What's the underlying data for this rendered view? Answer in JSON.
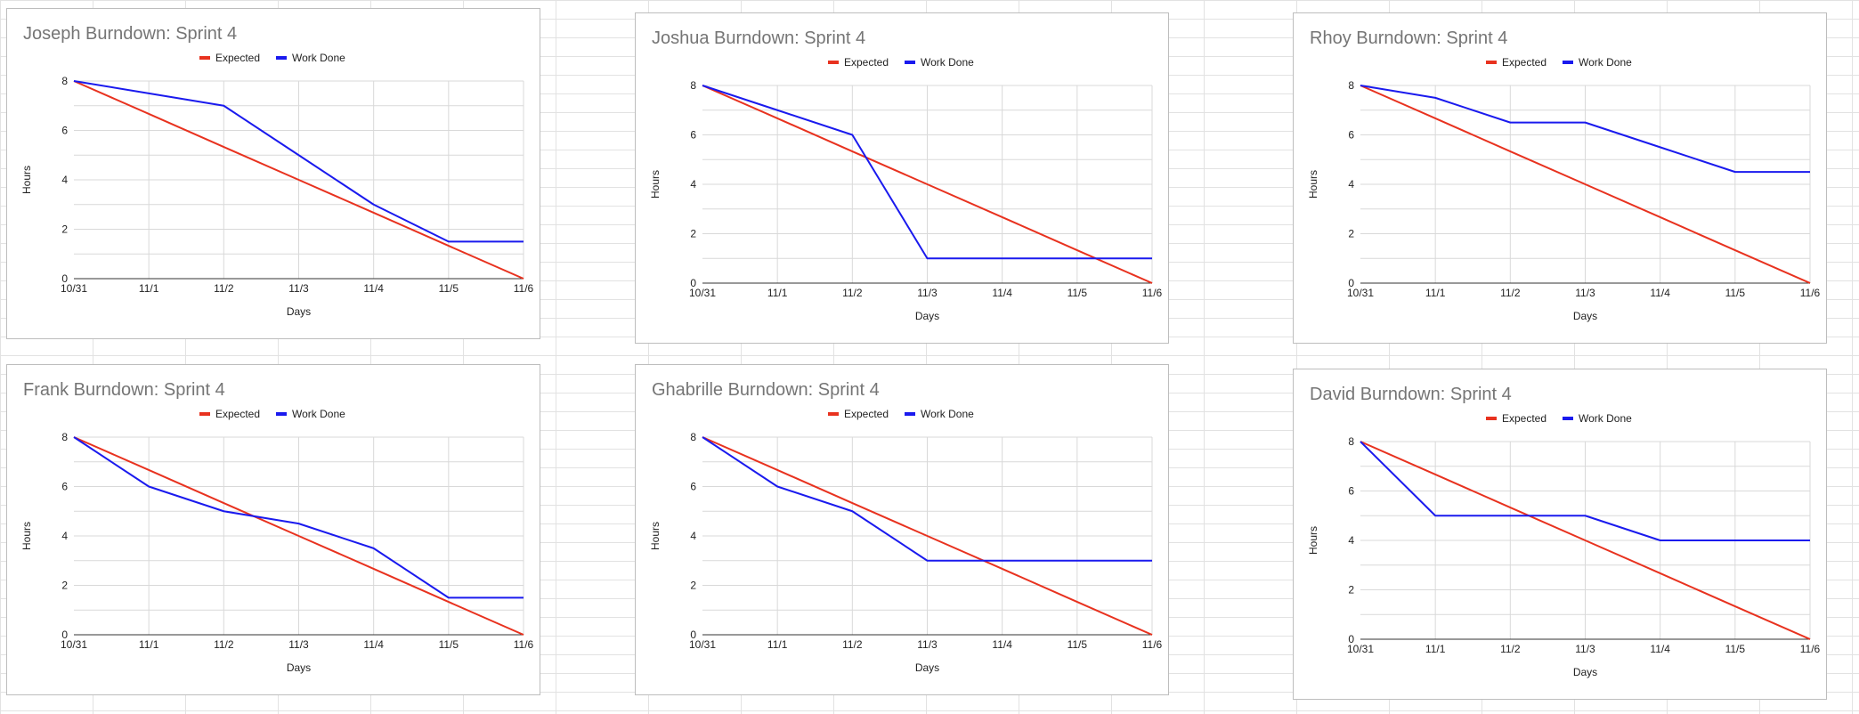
{
  "legend": {
    "expected": "Expected",
    "work_done": "Work Done"
  },
  "colors": {
    "expected": "#e8321f",
    "work_done": "#1a1aee"
  },
  "chart_data": [
    {
      "type": "line",
      "title": "Joseph Burndown: Sprint 4",
      "xlabel": "Days",
      "ylabel": "Hours",
      "categories": [
        "10/31",
        "11/1",
        "11/2",
        "11/3",
        "11/4",
        "11/5",
        "11/6"
      ],
      "ylim": [
        0,
        8
      ],
      "yticks": [
        0,
        2,
        4,
        6,
        8
      ],
      "series": [
        {
          "name": "Expected",
          "values": [
            8,
            6.67,
            5.33,
            4,
            2.67,
            1.33,
            0
          ]
        },
        {
          "name": "Work Done",
          "values": [
            8,
            7.5,
            7,
            5,
            3,
            1.5,
            1.5
          ]
        }
      ]
    },
    {
      "type": "line",
      "title": "Joshua Burndown: Sprint 4",
      "xlabel": "Days",
      "ylabel": "Hours",
      "categories": [
        "10/31",
        "11/1",
        "11/2",
        "11/3",
        "11/4",
        "11/5",
        "11/6"
      ],
      "ylim": [
        0,
        8
      ],
      "yticks": [
        0,
        2,
        4,
        6,
        8
      ],
      "series": [
        {
          "name": "Expected",
          "values": [
            8,
            6.67,
            5.33,
            4,
            2.67,
            1.33,
            0
          ]
        },
        {
          "name": "Work Done",
          "values": [
            8,
            7,
            6,
            1,
            1,
            1,
            1
          ]
        }
      ]
    },
    {
      "type": "line",
      "title": "Rhoy Burndown: Sprint 4",
      "xlabel": "Days",
      "ylabel": "Hours",
      "categories": [
        "10/31",
        "11/1",
        "11/2",
        "11/3",
        "11/4",
        "11/5",
        "11/6"
      ],
      "ylim": [
        0,
        8
      ],
      "yticks": [
        0,
        2,
        4,
        6,
        8
      ],
      "series": [
        {
          "name": "Expected",
          "values": [
            8,
            6.67,
            5.33,
            4,
            2.67,
            1.33,
            0
          ]
        },
        {
          "name": "Work Done",
          "values": [
            8,
            7.5,
            6.5,
            6.5,
            5.5,
            4.5,
            4.5
          ]
        }
      ]
    },
    {
      "type": "line",
      "title": "Frank Burndown: Sprint 4",
      "xlabel": "Days",
      "ylabel": "Hours",
      "categories": [
        "10/31",
        "11/1",
        "11/2",
        "11/3",
        "11/4",
        "11/5",
        "11/6"
      ],
      "ylim": [
        0,
        8
      ],
      "yticks": [
        0,
        2,
        4,
        6,
        8
      ],
      "series": [
        {
          "name": "Expected",
          "values": [
            8,
            6.67,
            5.33,
            4,
            2.67,
            1.33,
            0
          ]
        },
        {
          "name": "Work Done",
          "values": [
            8,
            6,
            5,
            4.5,
            3.5,
            1.5,
            1.5
          ]
        }
      ]
    },
    {
      "type": "line",
      "title": "Ghabrille Burndown: Sprint 4",
      "xlabel": "Days",
      "ylabel": "Hours",
      "categories": [
        "10/31",
        "11/1",
        "11/2",
        "11/3",
        "11/4",
        "11/5",
        "11/6"
      ],
      "ylim": [
        0,
        8
      ],
      "yticks": [
        0,
        2,
        4,
        6,
        8
      ],
      "series": [
        {
          "name": "Expected",
          "values": [
            8,
            6.67,
            5.33,
            4,
            2.67,
            1.33,
            0
          ]
        },
        {
          "name": "Work Done",
          "values": [
            8,
            6,
            5,
            3,
            3,
            3,
            3
          ]
        }
      ]
    },
    {
      "type": "line",
      "title": "David Burndown: Sprint 4",
      "xlabel": "Days",
      "ylabel": "Hours",
      "categories": [
        "10/31",
        "11/1",
        "11/2",
        "11/3",
        "11/4",
        "11/5",
        "11/6"
      ],
      "ylim": [
        0,
        8
      ],
      "yticks": [
        0,
        2,
        4,
        6,
        8
      ],
      "series": [
        {
          "name": "Expected",
          "values": [
            8,
            6.67,
            5.33,
            4,
            2.67,
            1.33,
            0
          ]
        },
        {
          "name": "Work Done",
          "values": [
            8,
            5,
            5,
            5,
            4,
            4,
            4
          ]
        }
      ]
    }
  ]
}
